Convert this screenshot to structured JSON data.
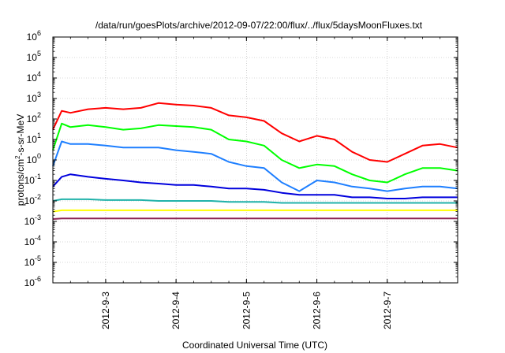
{
  "chart_data": {
    "type": "line",
    "title": "/data/run/goesPlots/archive/2012-09-07/22:00/flux/../flux/5daysMoonFluxes.txt",
    "xlabel": "Coordinated Universal Time (UTC)",
    "ylabel_prefix": "protons/cm",
    "ylabel_sup": "2",
    "ylabel_suffix": "-s-sr-MeV",
    "yscale": "log",
    "ylim": [
      1e-06,
      1000000.0
    ],
    "xlim": [
      "2012-09-02 06:00",
      "2012-09-08 00:00"
    ],
    "grid": true,
    "x_ticks": [
      "2012-9-3",
      "2012-9-4",
      "2012-9-5",
      "2012-9-6",
      "2012-9-7"
    ],
    "y_ticks": [
      {
        "base": "10",
        "exp": "-6"
      },
      {
        "base": "10",
        "exp": "-5"
      },
      {
        "base": "10",
        "exp": "-4"
      },
      {
        "base": "10",
        "exp": "-3"
      },
      {
        "base": "10",
        "exp": "-2"
      },
      {
        "base": "10",
        "exp": "-1"
      },
      {
        "base": "10",
        "exp": "0"
      },
      {
        "base": "10",
        "exp": "1"
      },
      {
        "base": "10",
        "exp": "2"
      },
      {
        "base": "10",
        "exp": "3"
      },
      {
        "base": "10",
        "exp": "4"
      },
      {
        "base": "10",
        "exp": "5"
      },
      {
        "base": "10",
        "exp": "6"
      }
    ],
    "x": [
      "2012-09-02 06:00",
      "2012-09-02 09:00",
      "2012-09-02 12:00",
      "2012-09-02 18:00",
      "2012-09-03 00:00",
      "2012-09-03 06:00",
      "2012-09-03 12:00",
      "2012-09-03 18:00",
      "2012-09-04 00:00",
      "2012-09-04 06:00",
      "2012-09-04 12:00",
      "2012-09-04 18:00",
      "2012-09-05 00:00",
      "2012-09-05 06:00",
      "2012-09-05 12:00",
      "2012-09-05 18:00",
      "2012-09-06 00:00",
      "2012-09-06 06:00",
      "2012-09-06 12:00",
      "2012-09-06 18:00",
      "2012-09-07 00:00",
      "2012-09-07 06:00",
      "2012-09-07 12:00",
      "2012-09-07 18:00",
      "2012-09-08 00:00"
    ],
    "series": [
      {
        "color": "#ff0000",
        "values": [
          30,
          250,
          200,
          300,
          350,
          300,
          350,
          600,
          500,
          450,
          350,
          150,
          120,
          80,
          20,
          8,
          15,
          10,
          2.5,
          1,
          0.8,
          2,
          5,
          6,
          4
        ]
      },
      {
        "color": "#00ff00",
        "values": [
          3,
          60,
          40,
          50,
          40,
          30,
          35,
          50,
          45,
          40,
          30,
          10,
          8,
          5,
          1,
          0.4,
          0.6,
          0.5,
          0.2,
          0.1,
          0.08,
          0.2,
          0.4,
          0.4,
          0.3
        ]
      },
      {
        "color": "#1e7fff",
        "values": [
          0.5,
          8,
          6,
          6,
          5,
          4,
          4,
          4,
          3,
          2.5,
          2,
          0.8,
          0.5,
          0.4,
          0.08,
          0.03,
          0.1,
          0.08,
          0.05,
          0.04,
          0.03,
          0.04,
          0.05,
          0.05,
          0.04
        ]
      },
      {
        "color": "#0000dd",
        "values": [
          0.05,
          0.15,
          0.2,
          0.15,
          0.12,
          0.1,
          0.08,
          0.07,
          0.06,
          0.06,
          0.05,
          0.04,
          0.04,
          0.035,
          0.025,
          0.02,
          0.02,
          0.02,
          0.015,
          0.015,
          0.013,
          0.013,
          0.015,
          0.015,
          0.015
        ]
      },
      {
        "color": "#20b2aa",
        "values": [
          0.01,
          0.012,
          0.012,
          0.012,
          0.011,
          0.011,
          0.011,
          0.01,
          0.01,
          0.01,
          0.01,
          0.009,
          0.009,
          0.009,
          0.008,
          0.008,
          0.008,
          0.008,
          0.008,
          0.008,
          0.008,
          0.008,
          0.008,
          0.008,
          0.008
        ]
      },
      {
        "color": "#ffff00",
        "values": [
          0.003,
          0.0035,
          0.0035,
          0.0035,
          0.0035,
          0.0035,
          0.0035,
          0.0035,
          0.0035,
          0.0035,
          0.0035,
          0.0035,
          0.0035,
          0.0035,
          0.0035,
          0.0035,
          0.0035,
          0.0035,
          0.0035,
          0.0035,
          0.0035,
          0.0035,
          0.0035,
          0.0035,
          0.0035
        ]
      },
      {
        "color": "#8b2252",
        "values": [
          0.0013,
          0.0014,
          0.0014,
          0.0014,
          0.0014,
          0.0014,
          0.0014,
          0.0014,
          0.0014,
          0.0014,
          0.0014,
          0.0014,
          0.0014,
          0.0014,
          0.0014,
          0.0014,
          0.0014,
          0.0014,
          0.0014,
          0.0014,
          0.0014,
          0.0014,
          0.0014,
          0.0014,
          0.0014
        ]
      }
    ]
  }
}
